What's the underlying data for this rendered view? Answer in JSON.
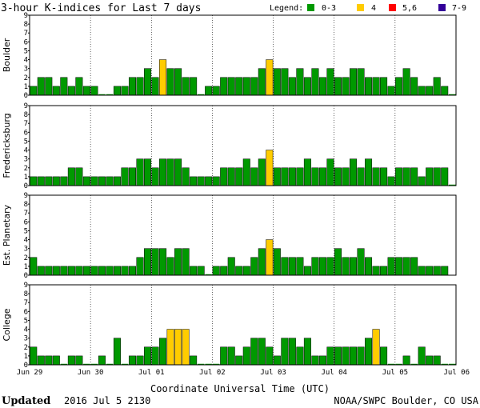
{
  "title": "3-hour K-indices for Last 7 days",
  "legend": {
    "label": "Legend:",
    "items": [
      {
        "label": "0-3",
        "color": "#009900"
      },
      {
        "label": "4",
        "color": "#ffcc00"
      },
      {
        "label": "5,6",
        "color": "#ff0000"
      },
      {
        "label": "7-9",
        "color": "#330099"
      }
    ]
  },
  "footer": {
    "updated_label": "Updated",
    "updated_value": "2016 Jul  5 2130",
    "source": "NOAA/SWPC Boulder, CO USA"
  },
  "chart_data": {
    "type": "bar",
    "xlabel": "Coordinate Universal Time (UTC)",
    "x_ticks": [
      "Jun 29",
      "Jun 30",
      "Jul 01",
      "Jul 02",
      "Jul 03",
      "Jul 04",
      "Jul 05",
      "Jul 06"
    ],
    "ylim": [
      0,
      9
    ],
    "y_ticks": [
      "0",
      "1",
      "2",
      "3",
      "4",
      "5",
      "6",
      "7",
      "8",
      "9"
    ],
    "bins_per_day": 8,
    "panels": [
      {
        "name": "Boulder",
        "values": [
          1,
          2,
          2,
          1,
          2,
          1,
          2,
          1,
          1,
          0,
          0,
          1,
          1,
          2,
          2,
          3,
          2,
          4,
          3,
          3,
          2,
          2,
          0,
          1,
          1,
          2,
          2,
          2,
          2,
          2,
          3,
          4,
          3,
          3,
          2,
          3,
          2,
          3,
          2,
          3,
          2,
          2,
          3,
          3,
          2,
          2,
          2,
          1,
          2,
          3,
          2,
          1,
          1,
          2,
          1,
          0
        ]
      },
      {
        "name": "Fredericksburg",
        "values": [
          1,
          1,
          1,
          1,
          1,
          2,
          2,
          1,
          1,
          1,
          1,
          1,
          2,
          2,
          3,
          3,
          2,
          3,
          3,
          3,
          2,
          1,
          1,
          1,
          1,
          2,
          2,
          2,
          3,
          2,
          3,
          4,
          2,
          2,
          2,
          2,
          3,
          2,
          2,
          3,
          2,
          2,
          3,
          2,
          3,
          2,
          2,
          1,
          2,
          2,
          2,
          1,
          2,
          2,
          2,
          0
        ]
      },
      {
        "name": "Est. Planetary",
        "values": [
          2,
          1,
          1,
          1,
          1,
          1,
          1,
          1,
          1,
          1,
          1,
          1,
          1,
          1,
          2,
          3,
          3,
          3,
          2,
          3,
          3,
          1,
          1,
          0,
          1,
          1,
          2,
          1,
          1,
          2,
          3,
          4,
          3,
          2,
          2,
          2,
          1,
          2,
          2,
          2,
          3,
          2,
          2,
          3,
          2,
          1,
          1,
          2,
          2,
          2,
          2,
          1,
          1,
          1,
          1
        ]
      },
      {
        "name": "College",
        "values": [
          2,
          1,
          1,
          1,
          0,
          1,
          1,
          0,
          0,
          1,
          0,
          3,
          0,
          1,
          1,
          2,
          2,
          3,
          4,
          4,
          4,
          1,
          0,
          0,
          0,
          2,
          2,
          1,
          2,
          3,
          3,
          2,
          1,
          3,
          3,
          2,
          3,
          1,
          1,
          2,
          2,
          2,
          2,
          2,
          3,
          4,
          2,
          0,
          0,
          1,
          0,
          2,
          1,
          1,
          0,
          0,
          0,
          0,
          0,
          0,
          0
        ]
      }
    ]
  }
}
